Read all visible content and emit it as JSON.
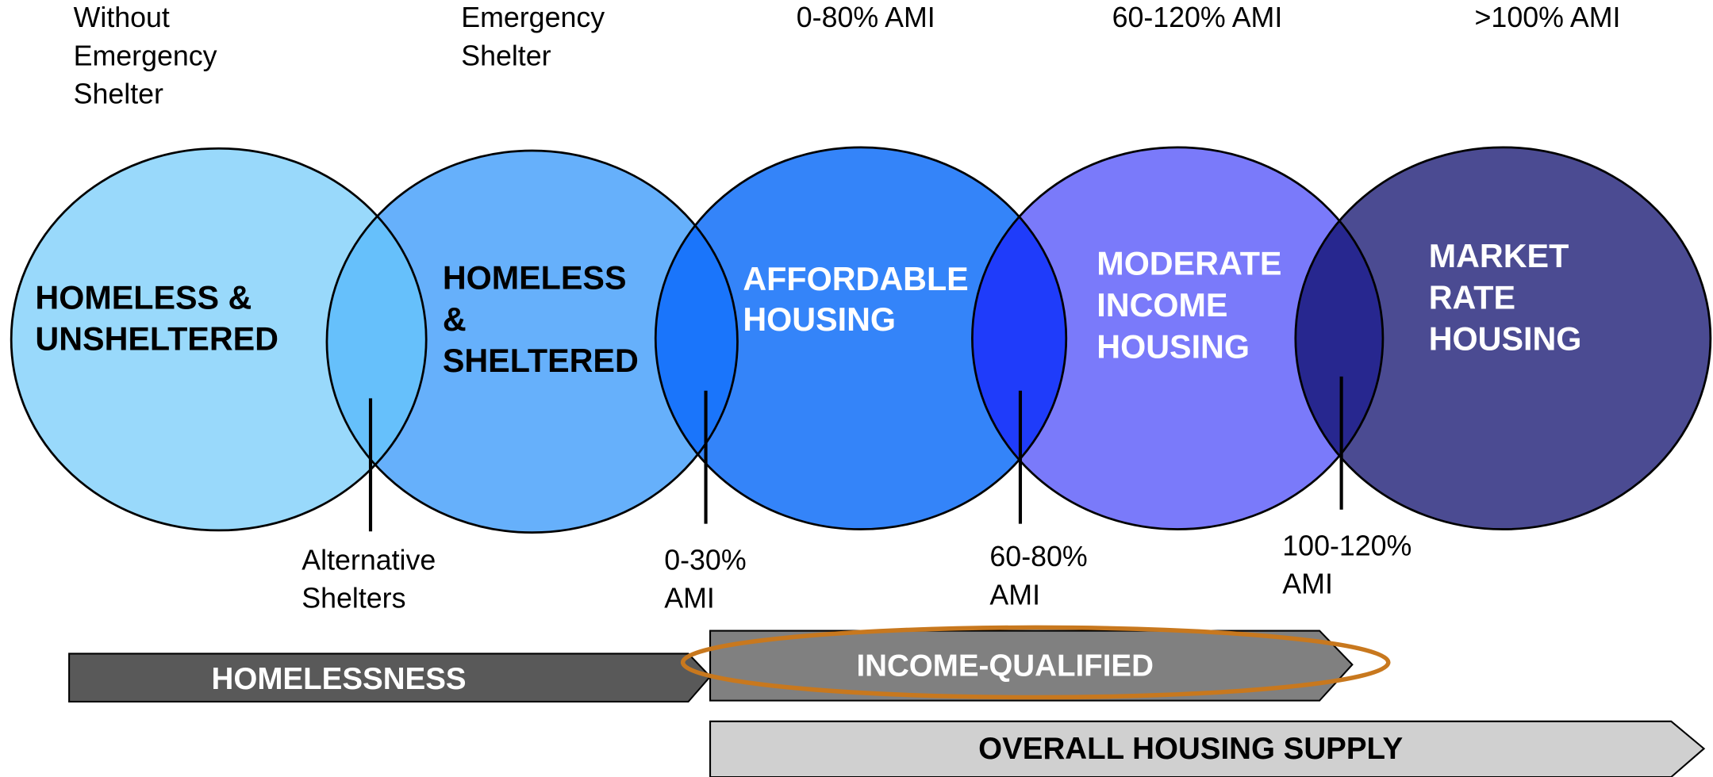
{
  "top_labels": [
    [
      "Without",
      "Emergency",
      "Shelter"
    ],
    [
      "Emergency",
      "Shelter"
    ],
    [
      "0-80% AMI"
    ],
    [
      "60-120% AMI"
    ],
    [
      ">100% AMI"
    ]
  ],
  "circles": [
    {
      "lines": [
        "HOMELESS &",
        "UNSHELTERED"
      ]
    },
    {
      "lines": [
        "HOMELESS",
        "&",
        "SHELTERED"
      ]
    },
    {
      "lines": [
        "AFFORDABLE",
        "HOUSING"
      ]
    },
    {
      "lines": [
        "MODERATE",
        "INCOME",
        "HOUSING"
      ]
    },
    {
      "lines": [
        "MARKET",
        "RATE",
        "HOUSING"
      ]
    }
  ],
  "boundaries": [
    [
      "Alternative",
      "Shelters"
    ],
    [
      "0-30%",
      "AMI"
    ],
    [
      "60-80%",
      "AMI"
    ],
    [
      "100-120%",
      "AMI"
    ]
  ],
  "bars": [
    "HOMELESSNESS",
    "INCOME-QUALIFIED",
    "OVERALL HOUSING SUPPLY"
  ]
}
